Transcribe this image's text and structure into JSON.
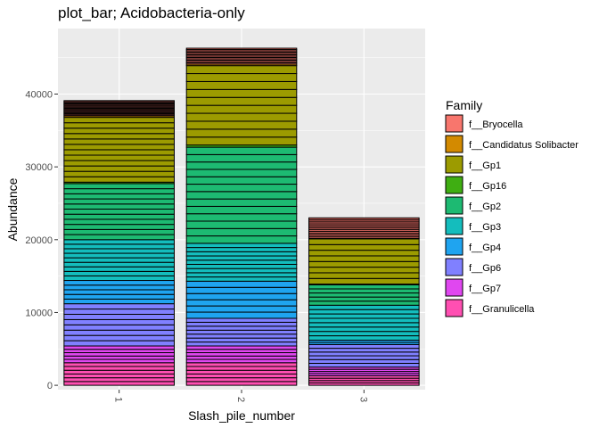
{
  "chart_data": {
    "type": "bar",
    "stacked": true,
    "title": "plot_bar; Acidobacteria-only",
    "xlabel": "Slash_pile_number",
    "ylabel": "Abundance",
    "categories": [
      "1",
      "2",
      "3"
    ],
    "y_ticks": [
      0,
      10000,
      20000,
      30000,
      40000
    ],
    "y_tick_labels": [
      "0",
      "10000",
      "20000",
      "30000",
      "40000"
    ],
    "ylim": [
      -600,
      49000
    ],
    "grid": true,
    "legend": {
      "title": "Family",
      "position": "right"
    },
    "colors": {
      "panel_bg": "#EBEBEB",
      "grid": "#FFFFFF",
      "bar_outline": "#000000"
    },
    "series": [
      {
        "name": "f__Granulicella",
        "color": "#FF4FB2",
        "values": [
          3100,
          3100,
          1300
        ]
      },
      {
        "name": "f__Gp7",
        "color": "#E047F0",
        "values": [
          2300,
          2300,
          1200
        ]
      },
      {
        "name": "f__Gp6",
        "color": "#8080FF",
        "values": [
          5800,
          3800,
          3100
        ]
      },
      {
        "name": "f__Gp4",
        "color": "#1FA4F0",
        "values": [
          3200,
          5100,
          600
        ]
      },
      {
        "name": "f__Gp3",
        "color": "#14BDBD",
        "values": [
          5600,
          5200,
          4800
        ]
      },
      {
        "name": "f__Gp2",
        "color": "#1DBA72",
        "values": [
          7700,
          13200,
          2800
        ]
      },
      {
        "name": "f__Gp16",
        "color": "#3FAE12",
        "values": [
          200,
          300,
          100
        ]
      },
      {
        "name": "f__Gp1",
        "color": "#9C9B00",
        "values": [
          8900,
          10900,
          6200
        ]
      },
      {
        "name": "f__Candidatus Solibacter",
        "color": "#D38A00",
        "values": [
          200,
          200,
          100
        ]
      },
      {
        "name": "f__Bryocella",
        "color": "#F8766D",
        "values": [
          2100,
          2200,
          2800
        ]
      }
    ],
    "bar_lines_note_free": true,
    "segments_per_family": [
      [
        6,
        5,
        8,
        5,
        9,
        11,
        1,
        12,
        1,
        14
      ],
      [
        6,
        5,
        7,
        6,
        9,
        13,
        1,
        10,
        1,
        12
      ],
      [
        4,
        4,
        6,
        2,
        8,
        5,
        1,
        8,
        1,
        12
      ]
    ]
  }
}
